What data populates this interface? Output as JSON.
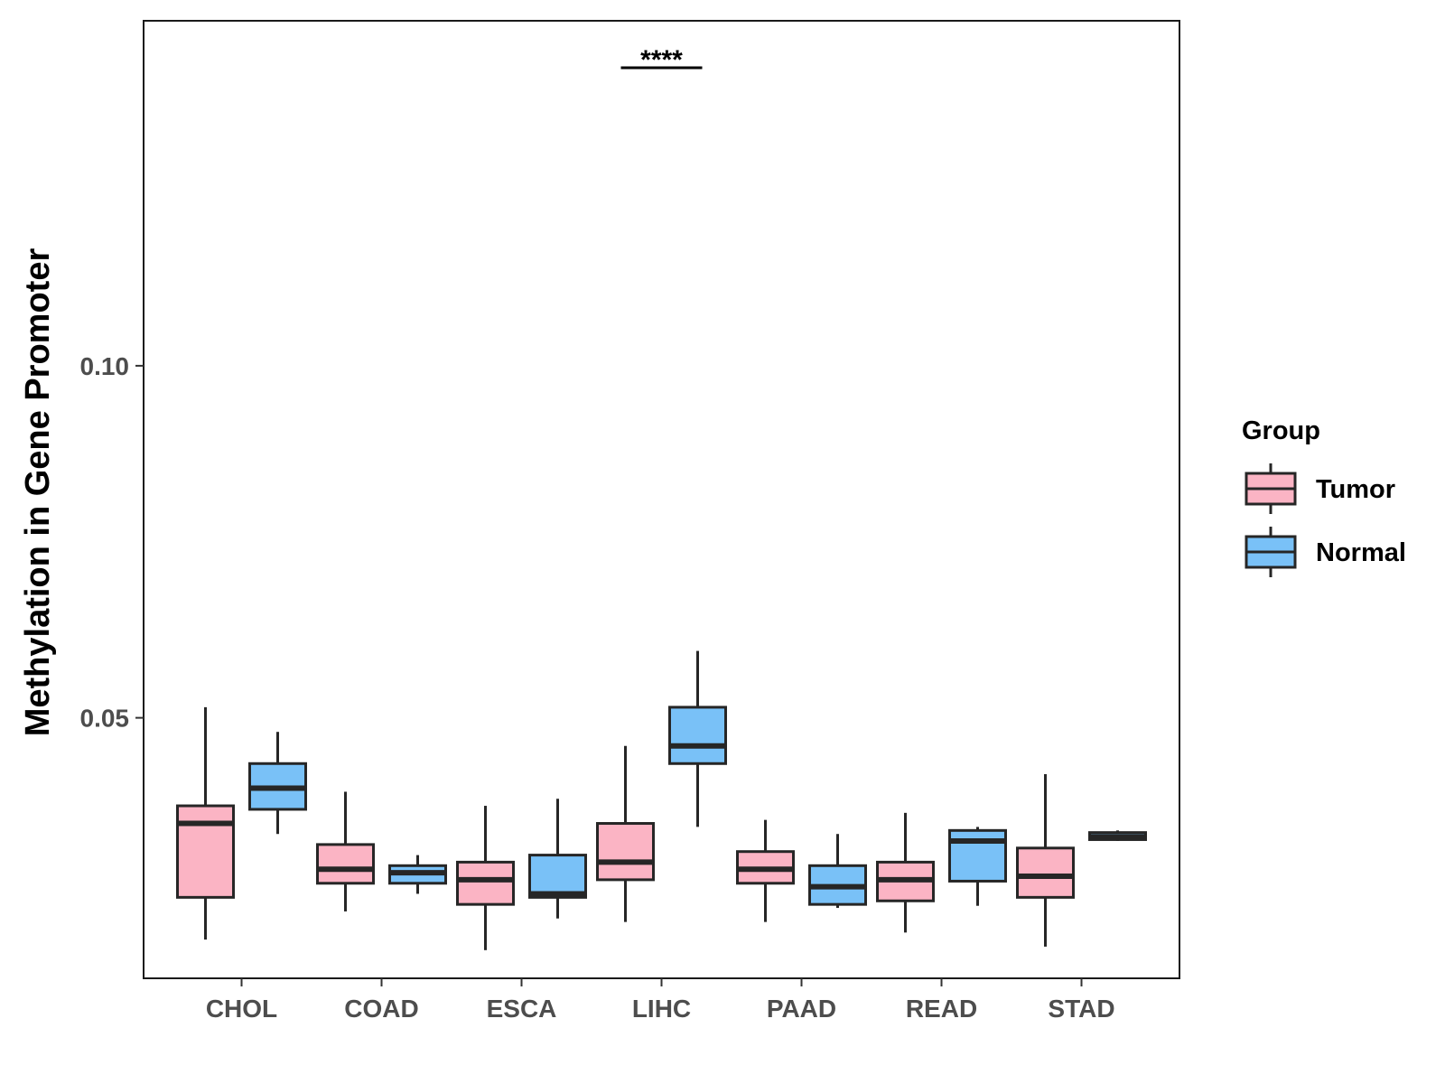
{
  "chart_data": {
    "type": "boxplot",
    "title": "",
    "xlabel": "",
    "ylabel": "Methylation in Gene Promoter",
    "ylim": [
      0.013,
      0.149
    ],
    "yticks": [
      0.05,
      0.1
    ],
    "ytick_labels": [
      "0.05",
      "0.10"
    ],
    "categories": [
      "CHOL",
      "COAD",
      "ESCA",
      "LIHC",
      "PAAD",
      "READ",
      "STAD"
    ],
    "legend": {
      "title": "Group",
      "position": "right",
      "entries": [
        {
          "label": "Tumor",
          "color": "#FBB4C4"
        },
        {
          "label": "Normal",
          "color": "#79C1F7"
        }
      ]
    },
    "series": [
      {
        "name": "Tumor",
        "color": "#FBB4C4",
        "boxes": [
          {
            "category": "CHOL",
            "min": 0.0185,
            "q1": 0.0245,
            "median": 0.035,
            "q3": 0.0375,
            "max": 0.0515
          },
          {
            "category": "COAD",
            "min": 0.0225,
            "q1": 0.0265,
            "median": 0.0285,
            "q3": 0.032,
            "max": 0.0395
          },
          {
            "category": "ESCA",
            "min": 0.017,
            "q1": 0.0235,
            "median": 0.027,
            "q3": 0.0295,
            "max": 0.0375
          },
          {
            "category": "LIHC",
            "min": 0.021,
            "q1": 0.027,
            "median": 0.0295,
            "q3": 0.035,
            "max": 0.046
          },
          {
            "category": "PAAD",
            "min": 0.021,
            "q1": 0.0265,
            "median": 0.0285,
            "q3": 0.031,
            "max": 0.0355
          },
          {
            "category": "READ",
            "min": 0.0195,
            "q1": 0.024,
            "median": 0.027,
            "q3": 0.0295,
            "max": 0.0365
          },
          {
            "category": "STAD",
            "min": 0.0175,
            "q1": 0.0245,
            "median": 0.0275,
            "q3": 0.0315,
            "max": 0.042
          }
        ]
      },
      {
        "name": "Normal",
        "color": "#79C1F7",
        "boxes": [
          {
            "category": "CHOL",
            "min": 0.0335,
            "q1": 0.037,
            "median": 0.04,
            "q3": 0.0435,
            "max": 0.048
          },
          {
            "category": "COAD",
            "min": 0.025,
            "q1": 0.0265,
            "median": 0.028,
            "q3": 0.029,
            "max": 0.0305
          },
          {
            "category": "ESCA",
            "min": 0.0215,
            "q1": 0.0245,
            "median": 0.025,
            "q3": 0.0305,
            "max": 0.0385
          },
          {
            "category": "LIHC",
            "min": 0.0345,
            "q1": 0.0435,
            "median": 0.046,
            "q3": 0.0515,
            "max": 0.0595
          },
          {
            "category": "PAAD",
            "min": 0.023,
            "q1": 0.0235,
            "median": 0.026,
            "q3": 0.029,
            "max": 0.0335
          },
          {
            "category": "READ",
            "min": 0.0233,
            "q1": 0.0268,
            "median": 0.0325,
            "q3": 0.034,
            "max": 0.0345
          },
          {
            "category": "STAD",
            "min": 0.0325,
            "q1": 0.0327,
            "median": 0.0331,
            "q3": 0.0337,
            "max": 0.034
          }
        ]
      }
    ],
    "annotations": [
      {
        "category": "LIHC",
        "text": "****"
      }
    ]
  }
}
